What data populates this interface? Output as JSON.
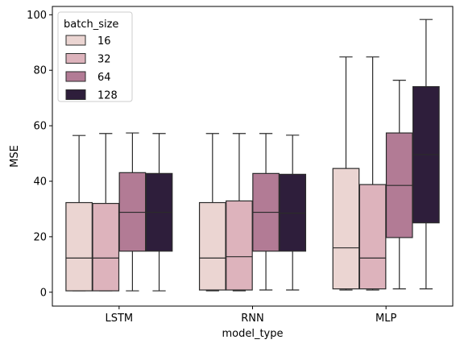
{
  "chart_data": {
    "type": "box",
    "title": "",
    "xlabel": "model_type",
    "ylabel": "MSE",
    "ylim": [
      -5,
      103
    ],
    "yticks": [
      0,
      20,
      40,
      60,
      80,
      100
    ],
    "categories": [
      "LSTM",
      "RNN",
      "MLP"
    ],
    "legend": {
      "title": "batch_size",
      "placement": "top-left"
    },
    "series": [
      {
        "name": "16",
        "color": "#ebd5d2",
        "boxes": [
          {
            "min": 0.5,
            "q1": 0.5,
            "median": 12.3,
            "q3": 32.3,
            "max": 56.5
          },
          {
            "min": 0.5,
            "q1": 0.8,
            "median": 12.3,
            "q3": 32.3,
            "max": 57.2
          },
          {
            "min": 0.8,
            "q1": 1.2,
            "median": 16.0,
            "q3": 44.6,
            "max": 84.8
          }
        ]
      },
      {
        "name": "32",
        "color": "#ddb3bc",
        "boxes": [
          {
            "min": 0.5,
            "q1": 0.5,
            "median": 12.3,
            "q3": 32.0,
            "max": 57.2
          },
          {
            "min": 0.5,
            "q1": 0.8,
            "median": 12.8,
            "q3": 32.9,
            "max": 57.2
          },
          {
            "min": 0.8,
            "q1": 1.2,
            "median": 12.3,
            "q3": 38.8,
            "max": 84.8
          }
        ]
      },
      {
        "name": "64",
        "color": "#b27b95",
        "boxes": [
          {
            "min": 0.5,
            "q1": 14.8,
            "median": 28.8,
            "q3": 43.1,
            "max": 57.4
          },
          {
            "min": 0.8,
            "q1": 14.8,
            "median": 28.8,
            "q3": 42.8,
            "max": 57.2
          },
          {
            "min": 1.2,
            "q1": 19.7,
            "median": 38.5,
            "q3": 57.4,
            "max": 76.4
          }
        ]
      },
      {
        "name": "128",
        "color": "#2e1e3b",
        "boxes": [
          {
            "min": 0.5,
            "q1": 14.8,
            "median": 28.8,
            "q3": 42.8,
            "max": 57.2
          },
          {
            "min": 0.8,
            "q1": 14.8,
            "median": 28.5,
            "q3": 42.5,
            "max": 56.6
          },
          {
            "min": 1.2,
            "q1": 25.0,
            "median": 49.6,
            "q3": 74.1,
            "max": 98.3
          }
        ]
      }
    ]
  }
}
